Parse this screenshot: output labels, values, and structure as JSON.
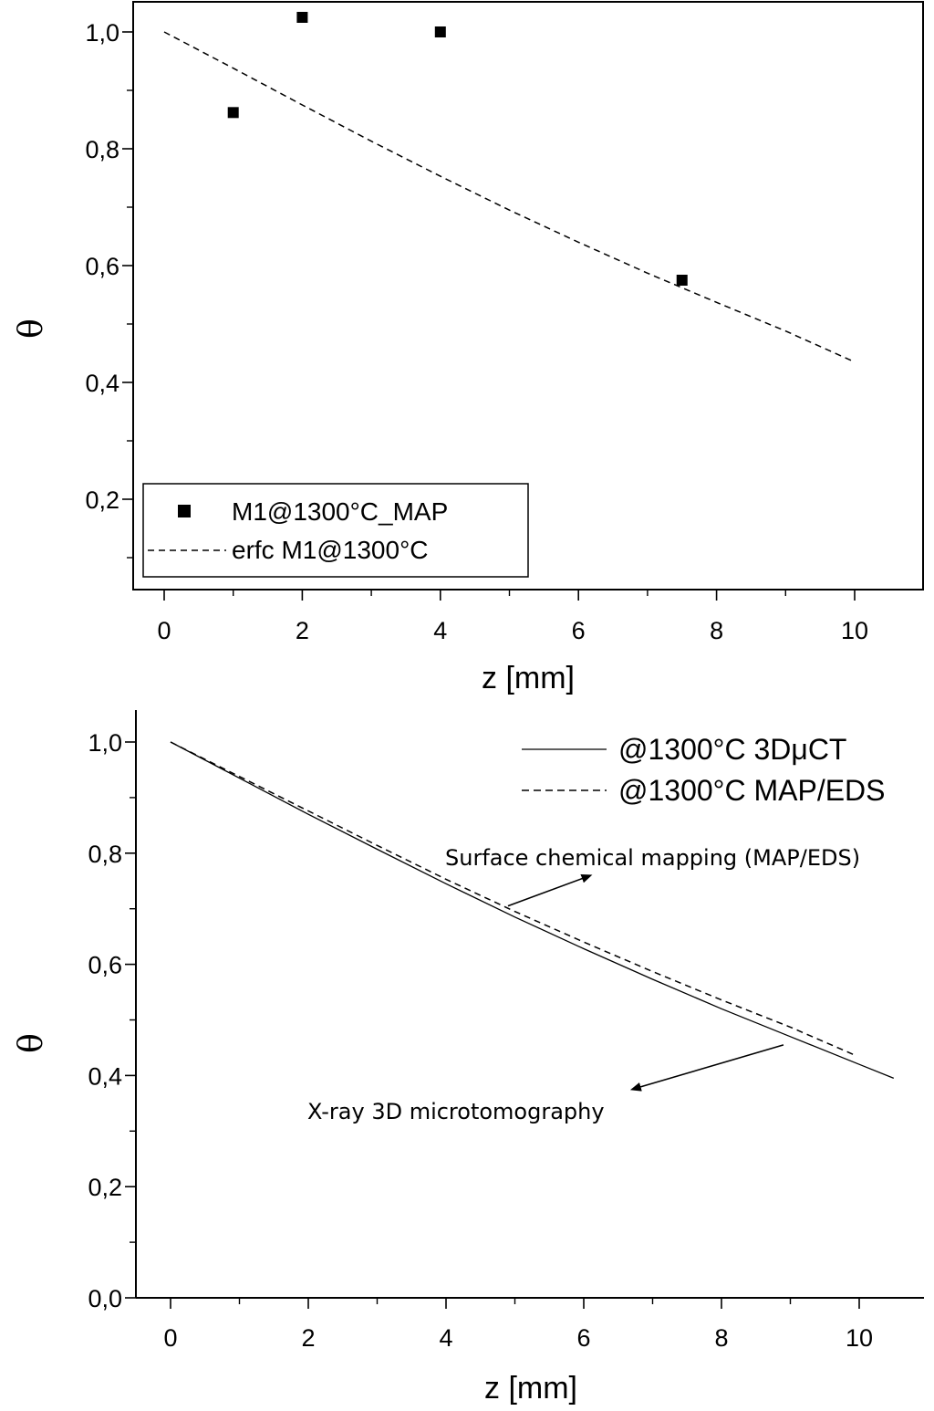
{
  "chart_data": [
    {
      "type": "scatter",
      "xlabel": "z [mm]",
      "ylabel": "θ",
      "xlim": [
        -0.45,
        11.0
      ],
      "ylim": [
        0.05,
        1.05
      ],
      "xticks": [
        0,
        2,
        4,
        6,
        8,
        10
      ],
      "xtick_labels": [
        "0",
        "2",
        "4",
        "6",
        "8",
        "10"
      ],
      "yticks": [
        0.2,
        0.4,
        0.6,
        0.8,
        1.0
      ],
      "ytick_labels": [
        "0,2",
        "0,4",
        "0,6",
        "0,8",
        "1,0"
      ],
      "grid": false,
      "legend_position": "bottom-left",
      "series": [
        {
          "name": "M1@1300°C_MAP",
          "style": "square-markers",
          "x": [
            1,
            2,
            4,
            7.5
          ],
          "y": [
            0.862,
            1.025,
            1.0,
            0.575
          ]
        },
        {
          "name": "erfc M1@1300°C",
          "style": "dashed-line",
          "x": [
            0,
            1,
            2,
            3,
            4,
            5,
            6,
            7,
            7.5,
            8,
            9,
            10
          ],
          "y": [
            1.0,
            0.938,
            0.875,
            0.813,
            0.753,
            0.695,
            0.64,
            0.587,
            0.562,
            0.537,
            0.488,
            0.435
          ]
        }
      ]
    },
    {
      "type": "line",
      "xlabel": "z [mm]",
      "ylabel": "θ",
      "xlim": [
        -0.5,
        10.95
      ],
      "ylim": [
        0.0,
        1.05
      ],
      "xticks": [
        0,
        2,
        4,
        6,
        8,
        10
      ],
      "xtick_labels": [
        "0",
        "2",
        "4",
        "6",
        "8",
        "10"
      ],
      "yticks": [
        0.0,
        0.2,
        0.4,
        0.6,
        0.8,
        1.0
      ],
      "ytick_labels": [
        "0,0",
        "0,2",
        "0,4",
        "0,6",
        "0,8",
        "1,0"
      ],
      "grid": false,
      "legend_position": "top-right",
      "series": [
        {
          "name": "@1300°C 3DμCT",
          "style": "solid-line",
          "x": [
            0,
            1,
            2,
            3,
            4,
            5,
            6,
            7,
            8,
            9,
            10,
            10.5
          ],
          "y": [
            1.0,
            0.935,
            0.87,
            0.807,
            0.745,
            0.685,
            0.628,
            0.573,
            0.52,
            0.47,
            0.42,
            0.395
          ]
        },
        {
          "name": "@1300°C MAP/EDS",
          "style": "dashed-line",
          "x": [
            0,
            1,
            2,
            3,
            4,
            5,
            6,
            7,
            8,
            9,
            9.95
          ],
          "y": [
            1.0,
            0.938,
            0.876,
            0.814,
            0.753,
            0.695,
            0.64,
            0.587,
            0.536,
            0.487,
            0.436
          ]
        }
      ],
      "annotations": [
        {
          "text": "Surface chemical mapping (MAP/EDS)",
          "arrow_from": [
            4.9,
            0.705
          ],
          "arrow_to": [
            6.1,
            0.76
          ]
        },
        {
          "text": "X-ray 3D microtomography",
          "arrow_from": [
            8.9,
            0.455
          ],
          "arrow_to": [
            6.7,
            0.375
          ]
        }
      ]
    }
  ]
}
